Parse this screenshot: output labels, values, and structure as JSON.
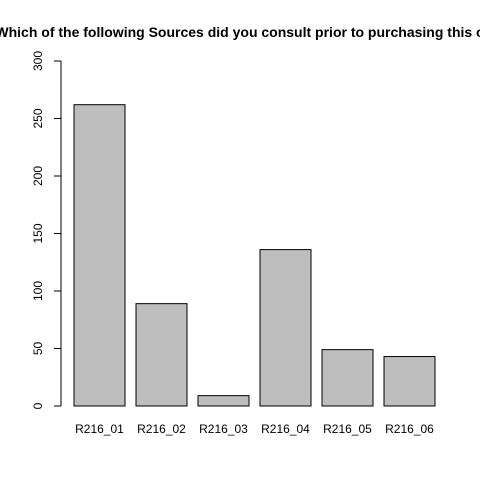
{
  "chart_data": {
    "type": "bar",
    "title": "Which of the following Sources did you consult prior to purchasing this o",
    "xlabel": "",
    "ylabel": "",
    "categories": [
      "R216_01",
      "R216_02",
      "R216_03",
      "R216_04",
      "R216_05",
      "R216_06"
    ],
    "values": [
      262,
      89,
      9,
      136,
      49,
      43
    ],
    "ylim": [
      0,
      300
    ],
    "yticks": [
      0,
      50,
      100,
      150,
      200,
      250,
      300
    ],
    "bar_color": "#bebebe",
    "grid": false,
    "legend": "none"
  }
}
